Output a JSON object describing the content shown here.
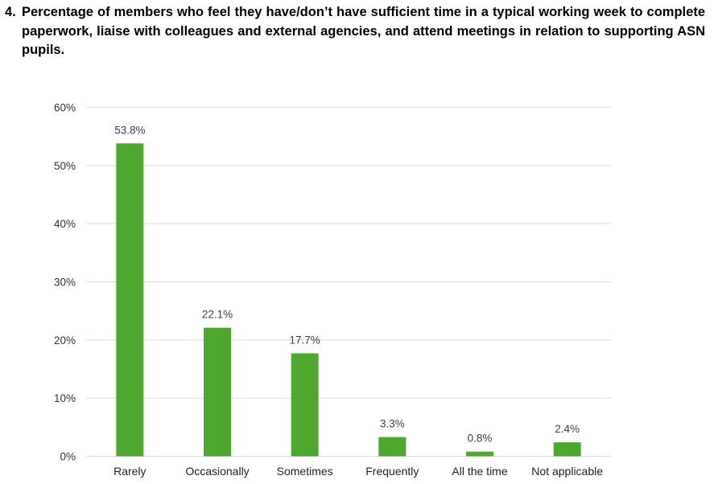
{
  "heading": {
    "number": "4.",
    "text": "Percentage of members who feel they have/don’t have sufficient time in a typical working week to complete paperwork, liaise with colleagues and external agencies, and attend meetings in relation to supporting ASN pupils."
  },
  "chart_data": {
    "type": "bar",
    "categories": [
      "Rarely",
      "Occasionally",
      "Sometimes",
      "Frequently",
      "All the time",
      "Not applicable"
    ],
    "values": [
      53.8,
      22.1,
      17.7,
      3.3,
      0.8,
      2.4
    ],
    "data_labels": [
      "53.8%",
      "22.1%",
      "17.7%",
      "3.3%",
      "0.8%",
      "2.4%"
    ],
    "ylim": [
      0,
      60
    ],
    "y_ticks": [
      0,
      10,
      20,
      30,
      40,
      50,
      60
    ],
    "y_tick_labels": [
      "0%",
      "10%",
      "20%",
      "30%",
      "40%",
      "50%",
      "60%"
    ],
    "grid": true,
    "legend": "none",
    "bar_color": "#4ea72e",
    "grid_color": "#d9d9d9"
  }
}
